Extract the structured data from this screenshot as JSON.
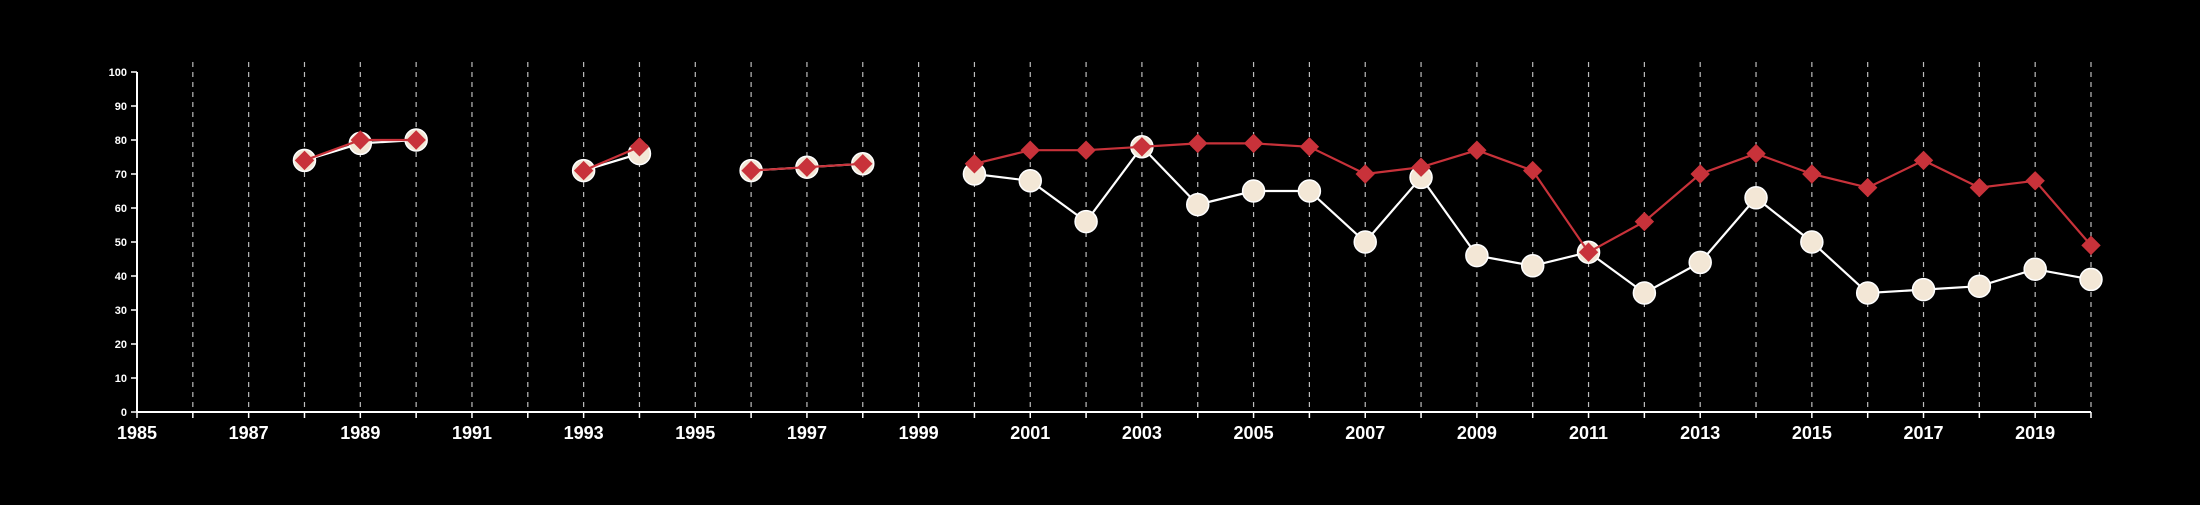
{
  "chart_data": {
    "type": "line",
    "title": "",
    "xlabel": "",
    "ylabel": "",
    "xlim": [
      1985,
      2020
    ],
    "ylim": [
      0,
      100
    ],
    "x_tick_labels": [
      "1985",
      "1987",
      "1989",
      "1991",
      "1993",
      "1995",
      "1997",
      "1999",
      "2001",
      "2003",
      "2005",
      "2007",
      "2009",
      "2011",
      "2013",
      "2015",
      "2017",
      "2019"
    ],
    "y_tick_labels": [
      "0",
      "10",
      "20",
      "30",
      "40",
      "50",
      "60",
      "70",
      "80",
      "90",
      "100"
    ],
    "grid": {
      "vertical": true,
      "horizontal": false,
      "style": "dashed"
    },
    "legend": "none",
    "series": [
      {
        "marker": "circle",
        "line_color": "#ffffff",
        "marker_color": "#f3e7d6",
        "points": [
          [
            1988,
            74
          ],
          [
            1989,
            79
          ],
          [
            1990,
            80
          ],
          [
            1991,
            null
          ],
          [
            1992,
            null
          ],
          [
            1993,
            71
          ],
          [
            1994,
            76
          ],
          [
            1995,
            null
          ],
          [
            1996,
            71
          ],
          [
            1997,
            72
          ],
          [
            1998,
            73
          ],
          [
            1999,
            null
          ],
          [
            2000,
            70
          ],
          [
            2001,
            68
          ],
          [
            2002,
            56
          ],
          [
            2003,
            78
          ],
          [
            2004,
            61
          ],
          [
            2005,
            65
          ],
          [
            2006,
            65
          ],
          [
            2007,
            50
          ],
          [
            2008,
            69
          ],
          [
            2009,
            46
          ],
          [
            2010,
            43
          ],
          [
            2011,
            47
          ],
          [
            2012,
            35
          ],
          [
            2013,
            44
          ],
          [
            2014,
            63
          ],
          [
            2015,
            50
          ],
          [
            2016,
            35
          ],
          [
            2017,
            36
          ],
          [
            2018,
            37
          ],
          [
            2019,
            42
          ],
          [
            2020,
            39
          ]
        ]
      },
      {
        "marker": "diamond",
        "line_color": "#c8323a",
        "marker_color": "#c8323a",
        "points": [
          [
            1988,
            74
          ],
          [
            1989,
            80
          ],
          [
            1990,
            80
          ],
          [
            1991,
            null
          ],
          [
            1992,
            null
          ],
          [
            1993,
            71
          ],
          [
            1994,
            78
          ],
          [
            1995,
            null
          ],
          [
            1996,
            71
          ],
          [
            1997,
            72
          ],
          [
            1998,
            73
          ],
          [
            1999,
            null
          ],
          [
            2000,
            73
          ],
          [
            2001,
            77
          ],
          [
            2002,
            77
          ],
          [
            2003,
            78
          ],
          [
            2004,
            79
          ],
          [
            2005,
            79
          ],
          [
            2006,
            78
          ],
          [
            2007,
            70
          ],
          [
            2008,
            72
          ],
          [
            2009,
            77
          ],
          [
            2010,
            71
          ],
          [
            2011,
            47
          ],
          [
            2012,
            56
          ],
          [
            2013,
            70
          ],
          [
            2014,
            76
          ],
          [
            2015,
            70
          ],
          [
            2016,
            66
          ],
          [
            2017,
            74
          ],
          [
            2018,
            66
          ],
          [
            2019,
            68
          ],
          [
            2020,
            49
          ]
        ]
      }
    ]
  }
}
